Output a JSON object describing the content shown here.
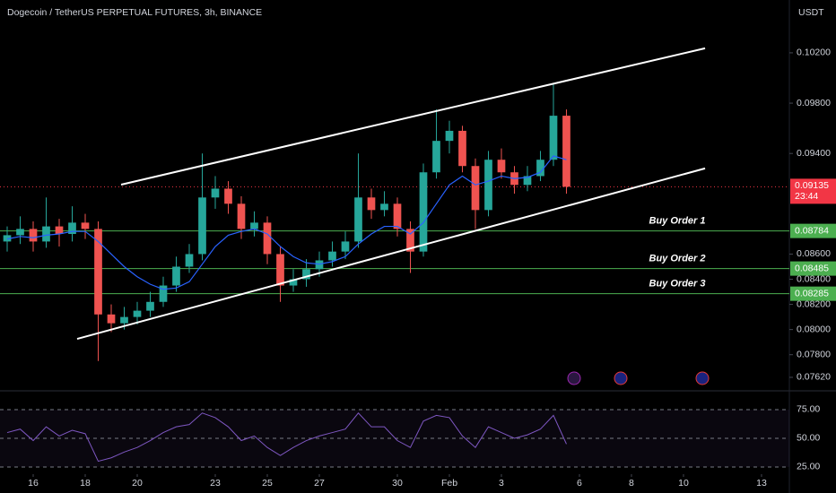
{
  "chart_data": {
    "type": "candlestick",
    "title": "Dogecoin / TetherUS PERPETUAL FUTURES, 3h, BINANCE",
    "currency": "USDT",
    "x": [
      -1,
      -0.5,
      0,
      0.5,
      1,
      1.5,
      2,
      2.5,
      3,
      3.5,
      4,
      4.5,
      5,
      5.5,
      6,
      6.5,
      7,
      7.5,
      8,
      8.5,
      9,
      9.5,
      10,
      10.5,
      11,
      11.5,
      12,
      12.5,
      13,
      13.5,
      14,
      14.5,
      15,
      15.5,
      16,
      16.5,
      17,
      17.5,
      18,
      18.5,
      19,
      19.5,
      20,
      20.5
    ],
    "open": [
      0.087,
      0.0875,
      0.088,
      0.087,
      0.0882,
      0.0876,
      0.0885,
      0.088,
      0.0812,
      0.0805,
      0.081,
      0.0815,
      0.0822,
      0.0835,
      0.085,
      0.086,
      0.0905,
      0.0912,
      0.09,
      0.088,
      0.0885,
      0.086,
      0.0835,
      0.084,
      0.0848,
      0.0855,
      0.0862,
      0.087,
      0.0905,
      0.0895,
      0.09,
      0.088,
      0.0862,
      0.0925,
      0.095,
      0.0958,
      0.093,
      0.0895,
      0.0935,
      0.0925,
      0.0915,
      0.0922,
      0.0935,
      0.097
    ],
    "high": [
      0.0882,
      0.089,
      0.0886,
      0.0905,
      0.0888,
      0.0898,
      0.0892,
      0.0886,
      0.082,
      0.0818,
      0.0822,
      0.083,
      0.0842,
      0.0858,
      0.0868,
      0.094,
      0.0922,
      0.0918,
      0.0906,
      0.0894,
      0.089,
      0.0866,
      0.0848,
      0.0856,
      0.0862,
      0.087,
      0.0878,
      0.094,
      0.0912,
      0.091,
      0.0905,
      0.0886,
      0.0932,
      0.0975,
      0.0966,
      0.0962,
      0.0936,
      0.0942,
      0.0944,
      0.093,
      0.093,
      0.0942,
      0.0995,
      0.0975
    ],
    "low": [
      0.0862,
      0.0868,
      0.0862,
      0.0865,
      0.0866,
      0.087,
      0.0872,
      0.0775,
      0.0798,
      0.08,
      0.0804,
      0.081,
      0.0818,
      0.083,
      0.0845,
      0.0855,
      0.0896,
      0.0892,
      0.0872,
      0.0874,
      0.0852,
      0.0822,
      0.083,
      0.0834,
      0.0842,
      0.085,
      0.0856,
      0.0865,
      0.0888,
      0.089,
      0.0874,
      0.0845,
      0.0858,
      0.092,
      0.094,
      0.0925,
      0.088,
      0.089,
      0.092,
      0.0908,
      0.091,
      0.0918,
      0.093,
      0.0908
    ],
    "close": [
      0.0875,
      0.088,
      0.087,
      0.0882,
      0.0876,
      0.0885,
      0.088,
      0.0812,
      0.0805,
      0.081,
      0.0815,
      0.0822,
      0.0835,
      0.085,
      0.086,
      0.0905,
      0.0912,
      0.09,
      0.088,
      0.0885,
      0.086,
      0.0835,
      0.084,
      0.0848,
      0.0855,
      0.0862,
      0.087,
      0.0905,
      0.0895,
      0.09,
      0.088,
      0.0862,
      0.0925,
      0.095,
      0.0958,
      0.093,
      0.0895,
      0.0935,
      0.0925,
      0.0915,
      0.0922,
      0.0935,
      0.097,
      0.09135
    ],
    "colors": {
      "up": "#26a69a",
      "down": "#ef5350"
    },
    "ma": {
      "color": "#2962ff",
      "values": [
        0.0872,
        0.0874,
        0.0873,
        0.0875,
        0.0876,
        0.0878,
        0.0878,
        0.087,
        0.086,
        0.085,
        0.0842,
        0.0836,
        0.0832,
        0.0833,
        0.0838,
        0.0852,
        0.0866,
        0.0875,
        0.0878,
        0.088,
        0.0876,
        0.0866,
        0.0858,
        0.0853,
        0.0852,
        0.0854,
        0.0858,
        0.0868,
        0.0876,
        0.0882,
        0.0882,
        0.0876,
        0.0885,
        0.09,
        0.0915,
        0.0922,
        0.0915,
        0.0918,
        0.0922,
        0.092,
        0.0921,
        0.0925,
        0.0938,
        0.0935
      ]
    },
    "xlim": [
      -1.276,
      29.07
    ],
    "xticks": [
      {
        "value": 0,
        "label": "16"
      },
      {
        "value": 2,
        "label": "18"
      },
      {
        "value": 4,
        "label": "20"
      },
      {
        "value": 7,
        "label": "23"
      },
      {
        "value": 9,
        "label": "25"
      },
      {
        "value": 11,
        "label": "27"
      },
      {
        "value": 14,
        "label": "30"
      },
      {
        "value": 16,
        "label": "Feb"
      },
      {
        "value": 18,
        "label": "3"
      },
      {
        "value": 21,
        "label": "6"
      },
      {
        "value": 23,
        "label": "8"
      },
      {
        "value": 25,
        "label": "10"
      },
      {
        "value": 28,
        "label": "13"
      }
    ],
    "ylim": [
      0.0752,
      0.1062
    ],
    "yticks": [
      {
        "value": 0.102,
        "label": "0.10200"
      },
      {
        "value": 0.098,
        "label": "0.09800"
      },
      {
        "value": 0.094,
        "label": "0.09400"
      },
      {
        "value": 0.086,
        "label": "0.08600"
      },
      {
        "value": 0.084,
        "label": "0.08400"
      },
      {
        "value": 0.082,
        "label": "0.08200"
      },
      {
        "value": 0.08,
        "label": "0.08000"
      },
      {
        "value": 0.078,
        "label": "0.07800"
      },
      {
        "value": 0.0762,
        "label": "0.07620"
      }
    ],
    "last_price": {
      "value": 0.09135,
      "countdown": "23:44",
      "color": "#f23645"
    },
    "trendlines": [
      {
        "color": "#ffffff",
        "x": [
          3.38,
          25.83
        ],
        "y": [
          0.09152,
          0.10236
        ]
      },
      {
        "color": "#ffffff",
        "x": [
          1.69,
          25.83
        ],
        "y": [
          0.07926,
          0.09281
        ]
      }
    ],
    "levels": [
      {
        "label": "Buy Order 1",
        "value": 0.08784,
        "color": "#4caf50"
      },
      {
        "label": "Buy Order 2",
        "value": 0.08485,
        "color": "#4caf50"
      },
      {
        "label": "Buy Order 3",
        "value": 0.08285,
        "color": "#4caf50"
      }
    ],
    "rsi": {
      "color": "#7e57c2",
      "ylim": [
        19.5,
        90.6
      ],
      "yticks": [
        {
          "value": 75,
          "label": "75.00"
        },
        {
          "value": 50,
          "label": "50.00"
        },
        {
          "value": 25,
          "label": "25.00"
        }
      ],
      "values": [
        55,
        58,
        48,
        60,
        52,
        57,
        54,
        30,
        33,
        38,
        42,
        48,
        55,
        60,
        62,
        72,
        68,
        60,
        48,
        52,
        42,
        35,
        42,
        48,
        52,
        55,
        58,
        72,
        60,
        60,
        48,
        42,
        65,
        70,
        68,
        52,
        42,
        60,
        55,
        50,
        53,
        58,
        70,
        45
      ]
    }
  }
}
